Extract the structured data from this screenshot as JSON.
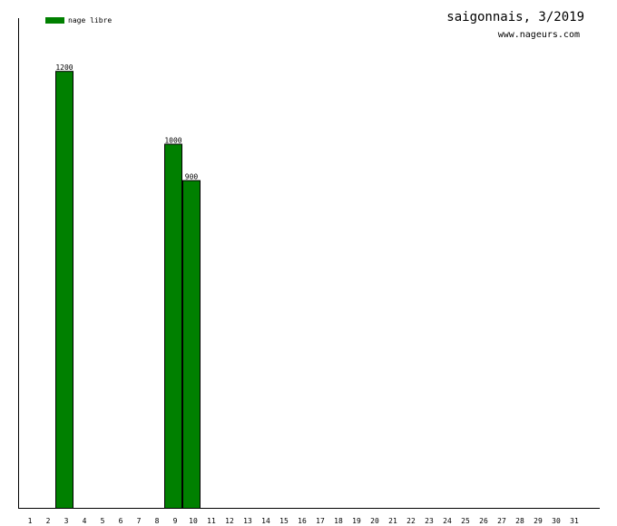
{
  "chart_data": {
    "type": "bar",
    "title": "saigonnais, 3/2019",
    "subtitle": "www.nageurs.com",
    "xlabel": "",
    "ylabel": "",
    "ylim": [
      0,
      1320
    ],
    "grid": false,
    "legend_placement": "top-left",
    "categories": [
      "1",
      "2",
      "3",
      "4",
      "5",
      "6",
      "7",
      "8",
      "9",
      "10",
      "11",
      "12",
      "13",
      "14",
      "15",
      "16",
      "17",
      "18",
      "19",
      "20",
      "21",
      "22",
      "23",
      "24",
      "25",
      "26",
      "27",
      "28",
      "29",
      "30",
      "31"
    ],
    "series": [
      {
        "name": "nage libre",
        "color": "#008000",
        "values": [
          0,
          0,
          1200,
          0,
          0,
          0,
          0,
          0,
          1000,
          900,
          0,
          0,
          0,
          0,
          0,
          0,
          0,
          0,
          0,
          0,
          0,
          0,
          0,
          0,
          0,
          0,
          0,
          0,
          0,
          0,
          0
        ]
      }
    ]
  }
}
